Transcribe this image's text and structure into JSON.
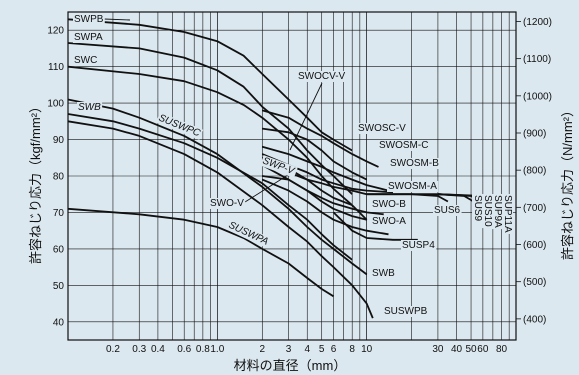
{
  "chart_data": {
    "type": "line",
    "xlabel": "材料の直径（mm）",
    "ylabel": "許容ねじり応力（kgf/mm²）",
    "ylabel_right": "許容ねじり応力（N/mm²）",
    "x_scale": "log",
    "xlim": [
      0.1,
      100
    ],
    "ylim": [
      35,
      125
    ],
    "x_ticks": [
      {
        "v": 0.2,
        "label": "0.2"
      },
      {
        "v": 0.3,
        "label": "0.3"
      },
      {
        "v": 0.4,
        "label": "0.4"
      },
      {
        "v": 0.6,
        "label": "0.6"
      },
      {
        "v": 0.8,
        "label": "0.8"
      },
      {
        "v": 1.0,
        "label": "1.0"
      },
      {
        "v": 2,
        "label": "2"
      },
      {
        "v": 3,
        "label": "3"
      },
      {
        "v": 4,
        "label": "4"
      },
      {
        "v": 5,
        "label": "5"
      },
      {
        "v": 6,
        "label": "6"
      },
      {
        "v": 8,
        "label": "8"
      },
      {
        "v": 10,
        "label": "10"
      },
      {
        "v": 30,
        "label": "30"
      },
      {
        "v": 40,
        "label": "40"
      },
      {
        "v": 50,
        "label": "50"
      },
      {
        "v": 60,
        "label": "60"
      },
      {
        "v": 80,
        "label": "80"
      }
    ],
    "y_ticks": [
      {
        "v": 40,
        "label": "40"
      },
      {
        "v": 50,
        "label": "50"
      },
      {
        "v": 60,
        "label": "60"
      },
      {
        "v": 70,
        "label": "70"
      },
      {
        "v": 80,
        "label": "80"
      },
      {
        "v": 90,
        "label": "90"
      },
      {
        "v": 100,
        "label": "100"
      },
      {
        "v": 110,
        "label": "110"
      },
      {
        "v": 120,
        "label": "120"
      }
    ],
    "y_ticks_right": [
      {
        "v": 40.8,
        "label": "(400)"
      },
      {
        "v": 51.0,
        "label": "(500)"
      },
      {
        "v": 61.2,
        "label": "(600)"
      },
      {
        "v": 71.4,
        "label": "(700)"
      },
      {
        "v": 81.6,
        "label": "(800)"
      },
      {
        "v": 91.8,
        "label": "(900)"
      },
      {
        "v": 102.0,
        "label": "(1000)"
      },
      {
        "v": 112.2,
        "label": "(1100)"
      },
      {
        "v": 122.4,
        "label": "(1200)"
      }
    ],
    "series": [
      {
        "name": "SWPB",
        "points": [
          [
            0.1,
            123
          ],
          [
            0.3,
            121.5
          ],
          [
            0.6,
            119.5
          ],
          [
            1.0,
            117
          ],
          [
            1.5,
            113
          ],
          [
            2,
            108
          ],
          [
            3,
            101
          ],
          [
            4,
            96
          ],
          [
            5,
            92
          ],
          [
            6,
            90
          ],
          [
            8,
            87
          ]
        ]
      },
      {
        "name": "SWPA",
        "points": [
          [
            0.1,
            116.5
          ],
          [
            0.3,
            115
          ],
          [
            0.6,
            112.5
          ],
          [
            1.0,
            109
          ],
          [
            1.5,
            104.5
          ],
          [
            2,
            99
          ],
          [
            3,
            93
          ],
          [
            4,
            87
          ],
          [
            5,
            83
          ],
          [
            6,
            80
          ],
          [
            8,
            75
          ]
        ]
      },
      {
        "name": "SWC",
        "points": [
          [
            0.1,
            110
          ],
          [
            0.3,
            108
          ],
          [
            0.6,
            106
          ],
          [
            1.0,
            103
          ],
          [
            1.5,
            99.5
          ],
          [
            2,
            96
          ],
          [
            3,
            90
          ],
          [
            4,
            85
          ],
          [
            5,
            80
          ],
          [
            6,
            76.5
          ],
          [
            8,
            72
          ],
          [
            10,
            68
          ]
        ]
      },
      {
        "name": "SWB",
        "points": [
          [
            0.1,
            101
          ],
          [
            0.2,
            98.5
          ],
          [
            0.3,
            96
          ],
          [
            0.6,
            91
          ],
          [
            1.0,
            86
          ],
          [
            2,
            77
          ],
          [
            3,
            71
          ],
          [
            4,
            66
          ],
          [
            5,
            62.5
          ],
          [
            6,
            60
          ],
          [
            8,
            56
          ],
          [
            10,
            53
          ]
        ]
      },
      {
        "name": "SUSWPC",
        "points": [
          [
            0.1,
            97
          ],
          [
            0.2,
            95
          ],
          [
            0.3,
            93
          ],
          [
            0.6,
            89
          ],
          [
            1.0,
            85
          ],
          [
            2,
            78
          ],
          [
            3,
            72
          ],
          [
            4,
            68
          ],
          [
            5,
            64
          ],
          [
            6,
            61
          ],
          [
            8,
            57
          ]
        ]
      },
      {
        "name": "SUSWPB",
        "points": [
          [
            0.1,
            95
          ],
          [
            0.2,
            93
          ],
          [
            0.3,
            91
          ],
          [
            0.6,
            86
          ],
          [
            1.0,
            81
          ],
          [
            2,
            72
          ],
          [
            3,
            66
          ],
          [
            4,
            62
          ],
          [
            5,
            58
          ],
          [
            6,
            55
          ],
          [
            8,
            50
          ],
          [
            10,
            45
          ],
          [
            11,
            41
          ]
        ]
      },
      {
        "name": "SUSWPA",
        "points": [
          [
            0.1,
            71
          ],
          [
            0.3,
            69.5
          ],
          [
            0.6,
            68
          ],
          [
            1.0,
            66
          ],
          [
            1.5,
            63
          ],
          [
            2,
            60
          ],
          [
            3,
            56
          ],
          [
            4,
            52
          ],
          [
            5,
            49
          ],
          [
            6,
            47
          ]
        ]
      },
      {
        "name": "SWOCV-V",
        "points": [
          [
            2,
            93
          ],
          [
            3,
            92
          ],
          [
            4,
            90
          ],
          [
            5,
            87
          ],
          [
            6,
            84
          ],
          [
            8,
            81
          ],
          [
            10,
            79
          ]
        ]
      },
      {
        "name": "SWOSC-V",
        "points": [
          [
            2,
            98
          ],
          [
            3,
            96
          ],
          [
            4,
            93
          ],
          [
            5,
            91
          ],
          [
            6,
            89
          ],
          [
            8,
            86
          ],
          [
            10,
            84
          ],
          [
            12,
            82.5
          ]
        ]
      },
      {
        "name": "SWOSM-C",
        "points": [
          [
            2,
            88
          ],
          [
            3,
            86
          ],
          [
            4,
            84
          ],
          [
            5,
            82.5
          ],
          [
            6,
            81
          ],
          [
            8,
            79
          ],
          [
            10,
            77.5
          ],
          [
            14,
            76
          ]
        ]
      },
      {
        "name": "SWOSM-B",
        "points": [
          [
            2,
            86
          ],
          [
            3,
            83
          ],
          [
            4,
            81
          ],
          [
            5,
            79
          ],
          [
            6,
            78
          ],
          [
            8,
            76.5
          ],
          [
            10,
            76
          ],
          [
            15,
            75.5
          ]
        ]
      },
      {
        "name": "SWOSM-A",
        "points": [
          [
            2,
            84
          ],
          [
            3,
            81
          ],
          [
            4,
            79
          ],
          [
            5,
            78
          ],
          [
            6,
            77
          ],
          [
            8,
            76
          ],
          [
            10,
            75
          ],
          [
            30,
            75
          ]
        ]
      },
      {
        "name": "SWO-V",
        "points": [
          [
            2,
            80
          ],
          [
            3,
            79
          ],
          [
            4,
            76
          ],
          [
            5,
            73
          ],
          [
            6,
            71
          ],
          [
            8,
            69
          ],
          [
            10,
            68
          ]
        ]
      },
      {
        "name": "SWP-V",
        "points": [
          [
            2,
            85
          ],
          [
            3,
            82
          ],
          [
            4,
            79
          ],
          [
            5,
            76
          ],
          [
            6,
            74
          ],
          [
            8,
            72
          ]
        ]
      },
      {
        "name": "SWO-B",
        "points": [
          [
            2,
            83
          ],
          [
            3,
            79
          ],
          [
            4,
            76
          ],
          [
            5,
            74
          ],
          [
            6,
            72.5
          ],
          [
            8,
            71
          ],
          [
            10,
            70
          ],
          [
            13,
            69.5
          ]
        ]
      },
      {
        "name": "SWO-A",
        "points": [
          [
            2,
            79
          ],
          [
            3,
            76
          ],
          [
            4,
            73
          ],
          [
            5,
            70
          ],
          [
            6,
            68
          ],
          [
            8,
            66
          ],
          [
            10,
            65
          ],
          [
            14,
            64
          ]
        ]
      },
      {
        "name": "SUSP4",
        "points": [
          [
            6,
            70
          ],
          [
            8,
            65
          ],
          [
            10,
            63
          ],
          [
            15,
            62.5
          ],
          [
            22,
            62.5
          ]
        ]
      },
      {
        "name": "SUS6",
        "points": [
          [
            10,
            75
          ],
          [
            20,
            75
          ],
          [
            30,
            74.5
          ],
          [
            35,
            73
          ]
        ]
      },
      {
        "name": "SUS9",
        "points": [
          [
            30,
            75
          ],
          [
            45,
            74.5
          ],
          [
            52,
            73
          ]
        ]
      },
      {
        "name": "SUS10",
        "points": [
          [
            30,
            75
          ],
          [
            50,
            74.5
          ],
          [
            58,
            73
          ]
        ]
      },
      {
        "name": "SUP9A",
        "points": [
          [
            30,
            75
          ],
          [
            55,
            74.5
          ],
          [
            65,
            73
          ]
        ]
      },
      {
        "name": "SUP11A",
        "points": [
          [
            30,
            75
          ],
          [
            62,
            74.5
          ],
          [
            75,
            73
          ]
        ]
      }
    ],
    "labels": [
      {
        "text": "SWPB",
        "series": "SWPB"
      },
      {
        "text": "SWPA",
        "series": "SWPA"
      },
      {
        "text": "SWC",
        "series": "SWC"
      },
      {
        "text": "SWB",
        "series": "SWB"
      },
      {
        "text": "SUSWPC",
        "series": "SUSWPC"
      },
      {
        "text": "SWOCV-V",
        "series": "SWOCV-V"
      },
      {
        "text": "SWOSC-V",
        "series": "SWOSC-V"
      },
      {
        "text": "SWOSM-C",
        "series": "SWOSM-C"
      },
      {
        "text": "SWOSM-B",
        "series": "SWOSM-B"
      },
      {
        "text": "SWOSM-A",
        "series": "SWOSM-A"
      },
      {
        "text": "SWP-V",
        "series": "SWP-V"
      },
      {
        "text": "SWO-V",
        "series": "SWO-V"
      },
      {
        "text": "SWO-B",
        "series": "SWO-B"
      },
      {
        "text": "SWO-A",
        "series": "SWO-A"
      },
      {
        "text": "SUSP4",
        "series": "SUSP4"
      },
      {
        "text": "SUS6",
        "series": "SUS6"
      },
      {
        "text": "SWB",
        "series": "SWB-lower"
      },
      {
        "text": "SUSWPA",
        "series": "SUSWPA"
      },
      {
        "text": "SUSWPB",
        "series": "SUSWPB"
      },
      {
        "text": "SUS9",
        "series": "SUS9"
      },
      {
        "text": "SUS10",
        "series": "SUS10"
      },
      {
        "text": "SUP9A",
        "series": "SUP9A"
      },
      {
        "text": "SUP11A",
        "series": "SUP11A"
      }
    ],
    "grid": true,
    "colors": {
      "background": "#dce8ef",
      "line": "#111111",
      "grid": "#111111"
    }
  }
}
